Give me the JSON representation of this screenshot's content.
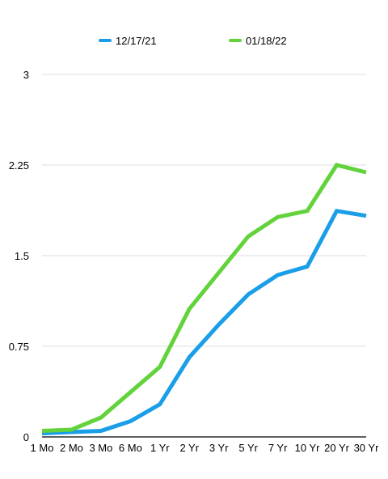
{
  "chart_data": {
    "type": "line",
    "categories": [
      "1 Mo",
      "2 Mo",
      "3 Mo",
      "6 Mo",
      "1 Yr",
      "2 Yr",
      "3 Yr",
      "5 Yr",
      "7 Yr",
      "10 Yr",
      "20 Yr",
      "30 Yr"
    ],
    "series": [
      {
        "name": "12/17/21",
        "color": "#1a9ee8",
        "values": [
          0.03,
          0.04,
          0.05,
          0.13,
          0.27,
          0.66,
          0.93,
          1.18,
          1.34,
          1.41,
          1.87,
          1.83
        ]
      },
      {
        "name": "01/18/22",
        "color": "#62d33b",
        "values": [
          0.05,
          0.06,
          0.16,
          0.37,
          0.58,
          1.06,
          1.36,
          1.66,
          1.82,
          1.87,
          2.25,
          2.19
        ]
      }
    ],
    "yticks": [
      "0",
      "0.75",
      "1.5",
      "2.25",
      "3"
    ],
    "ylim": [
      0,
      3
    ],
    "grid": true,
    "legend_position": "top"
  }
}
